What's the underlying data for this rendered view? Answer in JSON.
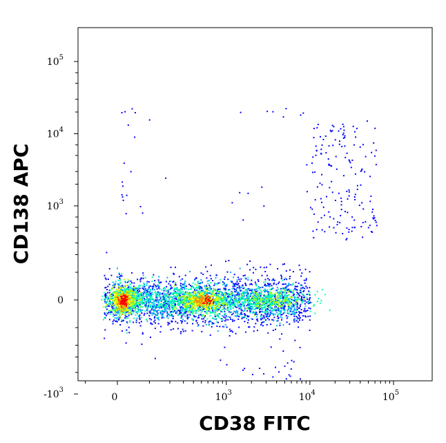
{
  "chart_data": {
    "type": "scatter",
    "style": "density-colored flow cytometry dot plot",
    "xlabel": "CD38 FITC",
    "ylabel": "CD138 APC",
    "x_scale": "biexponential",
    "y_scale": "biexponential",
    "x_ticks": [
      {
        "value": 0,
        "base": "0",
        "exp": ""
      },
      {
        "value": 1000,
        "base": "10",
        "exp": "3"
      },
      {
        "value": 10000,
        "base": "10",
        "exp": "4"
      },
      {
        "value": 100000,
        "base": "10",
        "exp": "5"
      }
    ],
    "y_ticks": [
      {
        "value": -1000,
        "base": "-10",
        "exp": "3"
      },
      {
        "value": 0,
        "base": "0",
        "exp": ""
      },
      {
        "value": 1000,
        "base": "10",
        "exp": "3"
      },
      {
        "value": 10000,
        "base": "10",
        "exp": "4"
      },
      {
        "value": 100000,
        "base": "10",
        "exp": "5"
      }
    ],
    "grid": false,
    "density_colors": [
      "#0000ff",
      "#00aaff",
      "#00ffaa",
      "#aaff00",
      "#ffff00",
      "#ff8800",
      "#ff0000"
    ],
    "populations": [
      {
        "center_x": 0,
        "center_y": 0,
        "relative_density": "highest"
      },
      {
        "center_x": 500,
        "center_y": 0,
        "relative_density": "high"
      },
      {
        "center_x": 5000,
        "center_y": 0,
        "relative_density": "medium"
      },
      {
        "center_x": 25000,
        "center_y": 3000,
        "relative_density": "sparse"
      }
    ]
  }
}
